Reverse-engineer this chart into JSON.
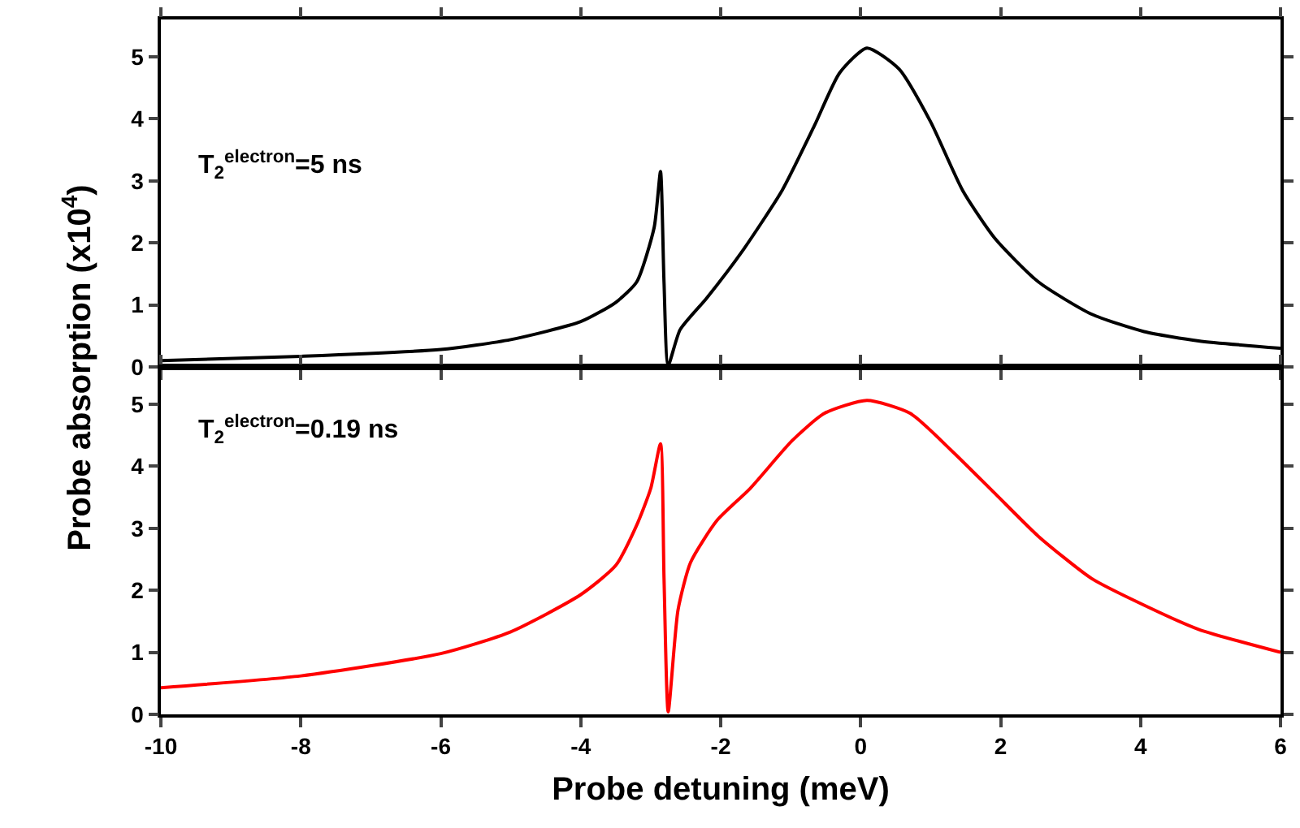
{
  "chart_data": [
    {
      "type": "line",
      "ylabel": "Probe absorption (x10$^{4}$)",
      "annotations": [
        "T$_{2}$$^{electron}$=5 ns"
      ],
      "series": [
        {
          "color": "#000000",
          "x": [
            -10,
            -8,
            -6,
            -5,
            -4,
            -3.5,
            -3.2,
            -2.95,
            -2.86,
            -2.81,
            -2.75,
            -2.58,
            -2.2,
            -1.67,
            -1.12,
            -0.66,
            -0.3,
            0.09,
            0.55,
            1.0,
            1.46,
            1.92,
            2.54,
            3.3,
            4.05,
            4.83,
            6
          ],
          "values": [
            0.1,
            0.17,
            0.28,
            0.44,
            0.73,
            1.04,
            1.37,
            2.25,
            3.15,
            1.37,
            0.03,
            0.6,
            1.11,
            1.9,
            2.85,
            3.89,
            4.74,
            5.14,
            4.8,
            3.95,
            2.84,
            2.07,
            1.37,
            0.85,
            0.57,
            0.42,
            0.3
          ]
        }
      ],
      "xlim": [
        -10,
        6
      ],
      "xticks": [
        -10,
        -8,
        -6,
        -4,
        -2,
        0,
        2,
        4,
        6
      ],
      "ylim": [
        0,
        5.6
      ],
      "yticks": [
        0,
        1,
        2,
        3,
        4,
        5
      ],
      "tick_labels": "y"
    },
    {
      "type": "line",
      "xlabel": "Probe detuning (meV)",
      "annotations": [
        "T$_{2}$$^{electron}$=0.19 ns"
      ],
      "series": [
        {
          "color": "#ff0000",
          "x": [
            -10,
            -8,
            -6,
            -5,
            -4,
            -3.5,
            -3.2,
            -3.0,
            -2.86,
            -2.81,
            -2.75,
            -2.61,
            -2.43,
            -2.05,
            -1.58,
            -0.98,
            -0.52,
            0.09,
            0.71,
            1.3,
            1.92,
            2.54,
            3.3,
            4.05,
            4.83,
            6
          ],
          "values": [
            0.43,
            0.62,
            0.98,
            1.33,
            1.93,
            2.4,
            3.05,
            3.64,
            4.36,
            2.2,
            0.04,
            1.68,
            2.45,
            3.13,
            3.64,
            4.41,
            4.85,
            5.06,
            4.85,
            4.25,
            3.56,
            2.87,
            2.19,
            1.76,
            1.37,
            1.0
          ]
        }
      ],
      "xlim": [
        -10,
        6
      ],
      "xticks": [
        -10,
        -8,
        -6,
        -4,
        -2,
        0,
        2,
        4,
        6
      ],
      "ylim": [
        0,
        5.6
      ],
      "yticks": [
        0,
        1,
        2,
        3,
        4,
        5
      ]
    }
  ]
}
